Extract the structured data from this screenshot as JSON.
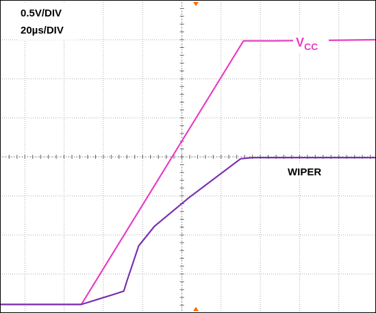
{
  "scope": {
    "vertical_scale": "0.5V/DIV",
    "horizontal_scale": "20µs/DIV",
    "grid": true,
    "divisions": {
      "x": 10,
      "y": 8
    }
  },
  "colors": {
    "background": "#ffffff",
    "border": "#000000",
    "grid": "#a8a8a8",
    "center_axis": "#606060",
    "vcc": "#e83cc4",
    "wiper": "#7a2fb0",
    "trigger_marker": "#ff6a00"
  },
  "chart_data": {
    "type": "line",
    "title": "",
    "x_unit": "div",
    "y_unit": "div",
    "xlim": [
      0,
      10
    ],
    "ylim": [
      0,
      8
    ],
    "series": [
      {
        "name": "VCC",
        "label_main": "V",
        "label_sub": "CC",
        "x": [
          0,
          2.44,
          6.57,
          7.35,
          10
        ],
        "y": [
          0.22,
          0.22,
          6.97,
          6.97,
          7.0
        ]
      },
      {
        "name": "WIPER",
        "label_main": "WIPER",
        "x": [
          0,
          2.44,
          3.28,
          3.52,
          3.6,
          3.9,
          4.3,
          5.2,
          6.5,
          6.8,
          10
        ],
        "y": [
          0.22,
          0.22,
          0.48,
          0.56,
          0.82,
          1.72,
          2.22,
          2.97,
          3.95,
          3.98,
          3.98
        ]
      }
    ]
  }
}
